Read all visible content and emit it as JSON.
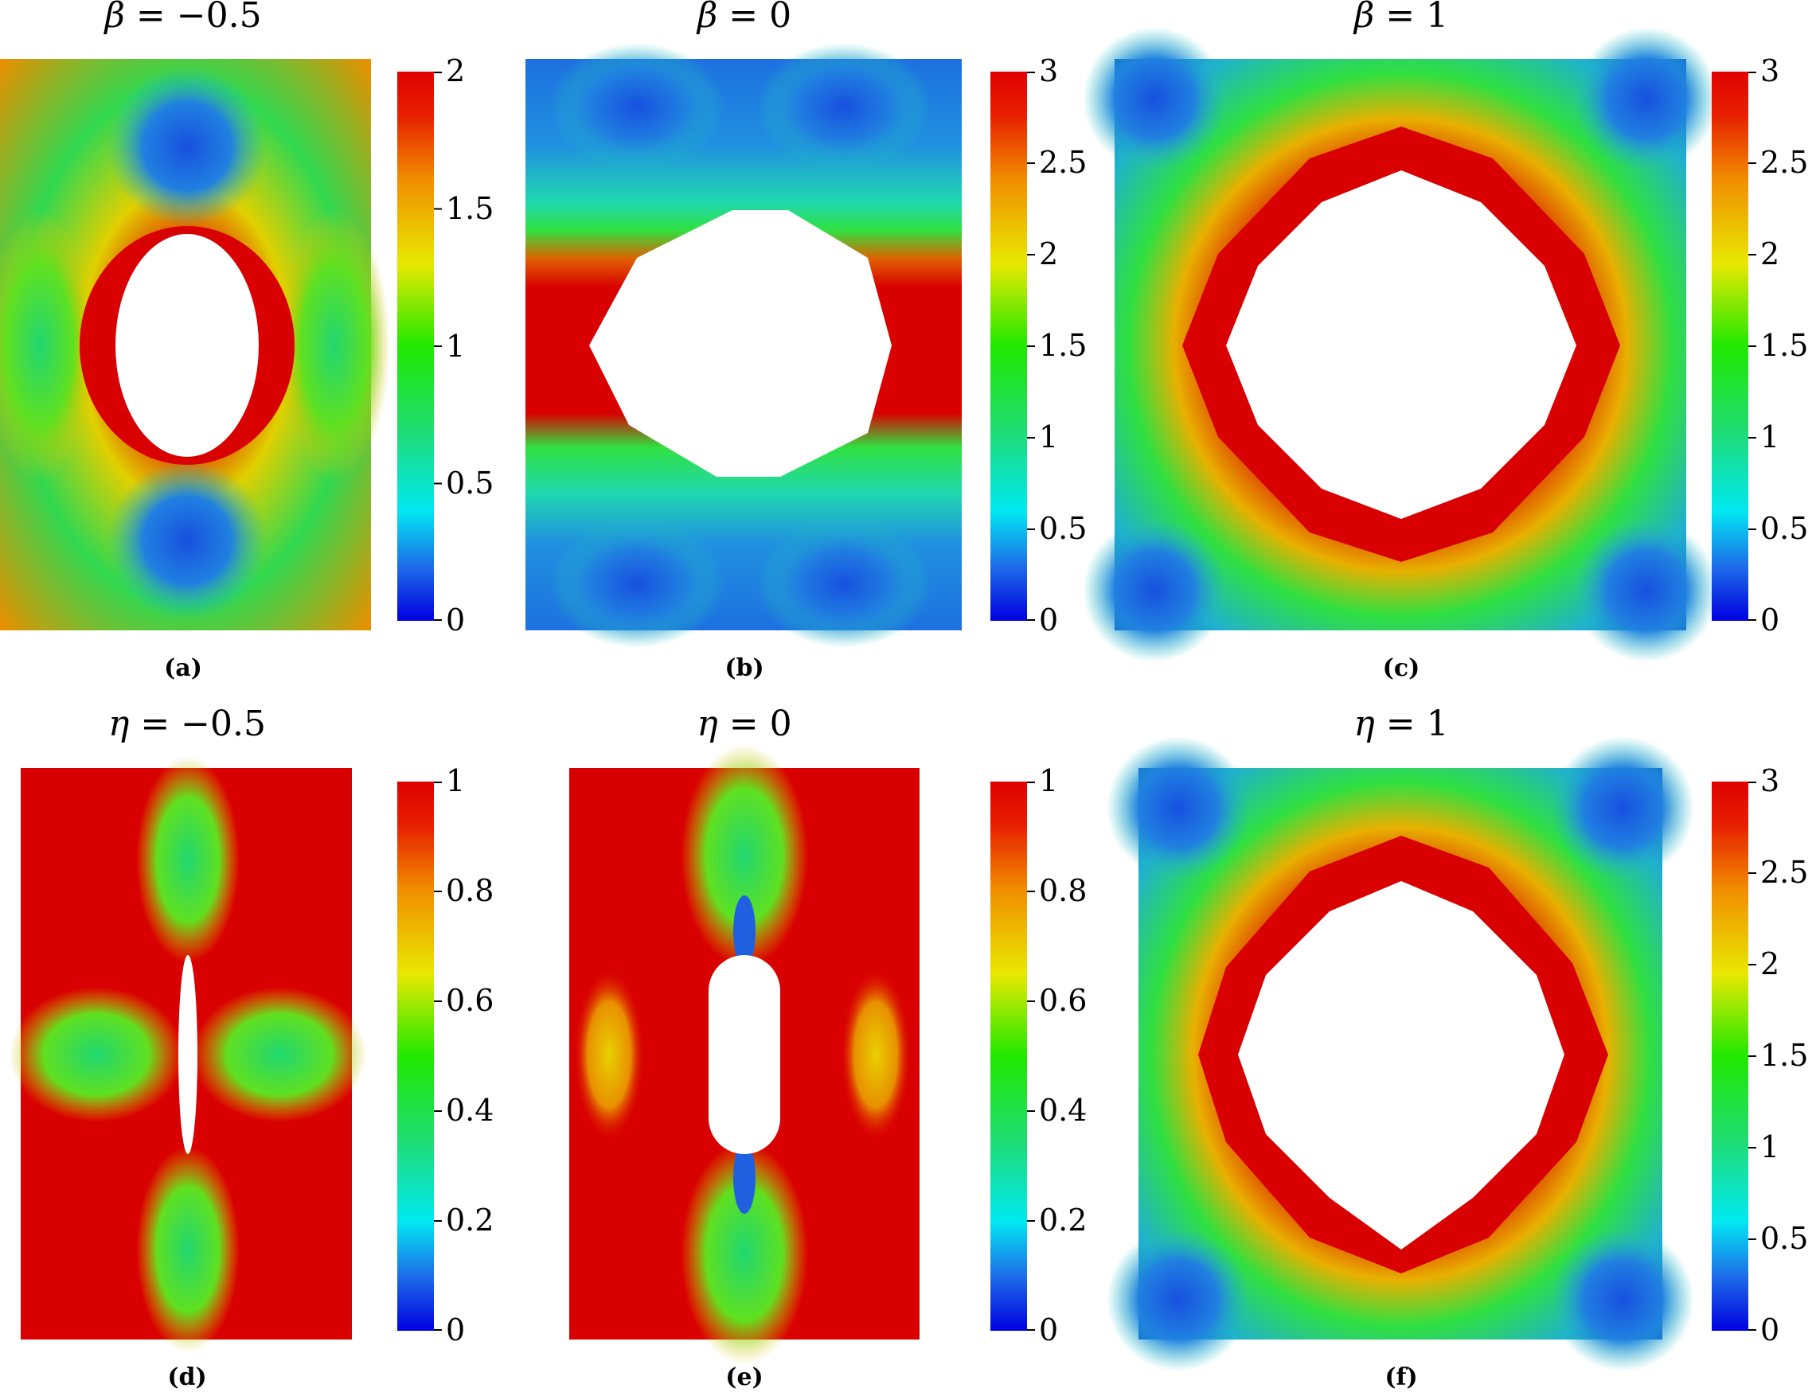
{
  "colors": {
    "colormap": [
      "#0000e8",
      "#1e6ee8",
      "#00e8e8",
      "#18d860",
      "#1ee800",
      "#e8e800",
      "#f0a000",
      "#e81800",
      "#c80000"
    ],
    "hole": "#ffffff"
  },
  "panels": [
    {
      "id": "a",
      "title_symbol": "β",
      "title_rest": " = −0.5",
      "caption": "(a)",
      "colorbar_ticks": [
        "0",
        "0.5",
        "1",
        "1.5",
        "2"
      ],
      "colorbar_range": [
        0,
        2
      ]
    },
    {
      "id": "b",
      "title_symbol": "β",
      "title_rest": " = 0",
      "caption": "(b)",
      "colorbar_ticks": [
        "0",
        "0.5",
        "1",
        "1.5",
        "2",
        "2.5",
        "3"
      ],
      "colorbar_range": [
        0,
        3
      ]
    },
    {
      "id": "c",
      "title_symbol": "β",
      "title_rest": " = 1",
      "caption": "(c)",
      "colorbar_ticks": [
        "0",
        "0.5",
        "1",
        "1.5",
        "2",
        "2.5",
        "3"
      ],
      "colorbar_range": [
        0,
        3
      ]
    },
    {
      "id": "d",
      "title_symbol": "η",
      "title_rest": " = −0.5",
      "caption": "(d)",
      "colorbar_ticks": [
        "0",
        "0.2",
        "0.4",
        "0.6",
        "0.8",
        "1"
      ],
      "colorbar_range": [
        0,
        1
      ]
    },
    {
      "id": "e",
      "title_symbol": "η",
      "title_rest": " = 0",
      "caption": "(e)",
      "colorbar_ticks": [
        "0",
        "0.2",
        "0.4",
        "0.6",
        "0.8",
        "1"
      ],
      "colorbar_range": [
        0,
        1
      ]
    },
    {
      "id": "f",
      "title_symbol": "η",
      "title_rest": " = 1",
      "caption": "(f)",
      "colorbar_ticks": [
        "0",
        "0.5",
        "1",
        "1.5",
        "2",
        "2.5",
        "3"
      ],
      "colorbar_range": [
        0,
        3
      ]
    }
  ]
}
